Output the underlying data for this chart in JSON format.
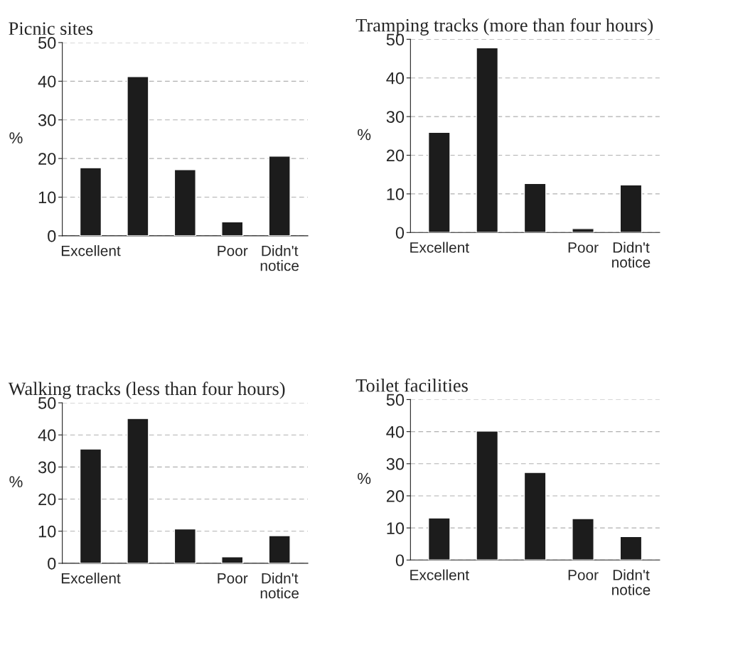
{
  "chart_data": [
    {
      "type": "bar",
      "title": "Picnic sites",
      "ylabel": "%",
      "categories": [
        "Excellent",
        null,
        null,
        "Poor",
        "Didn't\nnotice"
      ],
      "values": [
        17.6,
        41.2,
        17.1,
        3.6,
        20.6
      ],
      "color": "#1c1c1c",
      "ylim": [
        0,
        50
      ],
      "yticks": [
        0,
        10,
        20,
        30,
        40,
        50
      ],
      "grid": "y",
      "legend": false
    },
    {
      "type": "bar",
      "title": "Tramping tracks (more than four hours)",
      "ylabel": "%",
      "categories": [
        "Excellent",
        null,
        null,
        "Poor",
        "Didn't\nnotice"
      ],
      "values": [
        25.9,
        47.8,
        12.7,
        1.0,
        12.3
      ],
      "color": "#1c1c1c",
      "ylim": [
        0,
        50
      ],
      "yticks": [
        0,
        10,
        20,
        30,
        40,
        50
      ],
      "grid": "y",
      "legend": false
    },
    {
      "type": "bar",
      "title": "Walking tracks (less than four hours)",
      "ylabel": "%",
      "categories": [
        "Excellent",
        null,
        null,
        "Poor",
        "Didn't\nnotice"
      ],
      "values": [
        35.6,
        45.1,
        10.7,
        2.0,
        8.6
      ],
      "color": "#1c1c1c",
      "ylim": [
        0,
        50
      ],
      "yticks": [
        0,
        10,
        20,
        30,
        40,
        50
      ],
      "grid": "y",
      "legend": false
    },
    {
      "type": "bar",
      "title": "Toilet facilities",
      "ylabel": "%",
      "categories": [
        "Excellent",
        null,
        null,
        "Poor",
        "Didn't\nnotice"
      ],
      "values": [
        13.1,
        40.2,
        27.3,
        12.9,
        7.3
      ],
      "color": "#1c1c1c",
      "ylim": [
        0,
        50
      ],
      "yticks": [
        0,
        10,
        20,
        30,
        40,
        50
      ],
      "grid": "y",
      "legend": false
    }
  ]
}
